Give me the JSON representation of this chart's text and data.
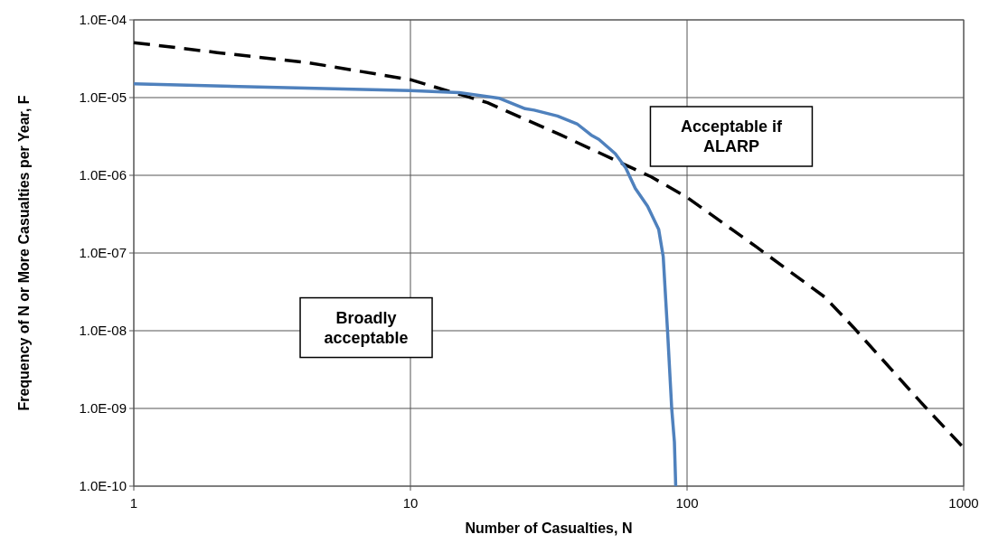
{
  "chart_data": {
    "type": "line",
    "xlabel": "Number of Casualties,  N",
    "ylabel": "Frequency of N or More Casualties per Year, F",
    "log": "xy",
    "grid": true,
    "xlim": [
      1,
      1000
    ],
    "xticks": [
      1,
      10,
      100,
      1000
    ],
    "ylim": [
      1e-10,
      0.0001
    ],
    "yticks": [
      {
        "value": 1e-10,
        "label": "1.0E-10"
      },
      {
        "value": 1e-09,
        "label": "1.0E-09"
      },
      {
        "value": 1e-08,
        "label": "1.0E-08"
      },
      {
        "value": 1e-07,
        "label": "1.0E-07"
      },
      {
        "value": 1e-06,
        "label": "1.0E-06"
      },
      {
        "value": 1e-05,
        "label": "1.0E-05"
      },
      {
        "value": 0.0001,
        "label": "1.0E-04"
      }
    ],
    "series": [
      {
        "color": "#000000",
        "line_style": "dashed",
        "x": [
          1,
          2,
          4.3,
          10,
          19,
          35,
          74,
          100,
          178,
          315,
          400,
          700,
          1000
        ],
        "values": [
          5.1e-05,
          3.8e-05,
          2.8e-05,
          1.7e-05,
          8.6e-06,
          3.3e-06,
          9.6e-07,
          5.2e-07,
          1.2e-07,
          2.7e-08,
          1.1e-08,
          1.2e-09,
          3.1e-10
        ]
      },
      {
        "color": "#4f81bd",
        "line_style": "solid",
        "x": [
          1,
          10,
          15,
          21,
          26,
          28,
          34,
          40,
          45,
          48,
          55,
          60,
          65,
          72,
          79,
          82,
          85,
          88,
          90,
          91
        ],
        "values": [
          1.5e-05,
          1.23e-05,
          1.16e-05,
          9.8e-06,
          7.2e-06,
          6.9e-06,
          5.8e-06,
          4.6e-06,
          3.3e-06,
          2.9e-06,
          1.9e-06,
          1.25e-06,
          6.8e-07,
          4e-07,
          2e-07,
          9e-08,
          1e-08,
          1e-09,
          3.7e-10,
          1e-10
        ]
      }
    ],
    "annotations": [
      "Acceptable if\nALARP",
      "Broadly\nacceptable"
    ]
  }
}
